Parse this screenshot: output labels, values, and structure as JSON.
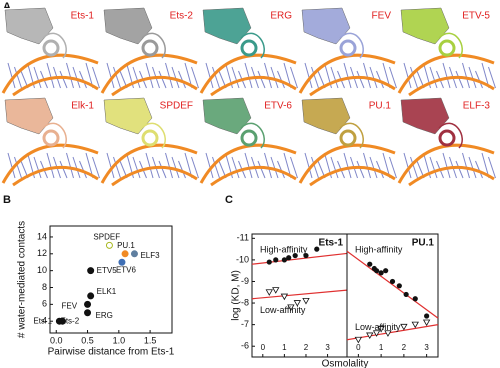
{
  "panel_labels": [
    "A",
    "B",
    "C"
  ],
  "structures": [
    {
      "label": "Ets-1",
      "color": "#b0b0b0"
    },
    {
      "label": "Ets-2",
      "color": "#9a9a9a"
    },
    {
      "label": "ERG",
      "color": "#3a9a8a"
    },
    {
      "label": "FEV",
      "color": "#9aa3d8"
    },
    {
      "label": "ETV-5",
      "color": "#a8d040"
    },
    {
      "label": "Elk-1",
      "color": "#e8b090"
    },
    {
      "label": "SPDEF",
      "color": "#dede70"
    },
    {
      "label": "ETV-6",
      "color": "#5aa070"
    },
    {
      "label": "PU.1",
      "color": "#c0a040"
    },
    {
      "label": "ELF-3",
      "color": "#a03040"
    }
  ],
  "chart_data": [
    {
      "type": "scatter",
      "xlabel": "Pairwise distance from Ets-1",
      "ylabel": "# water-mediated contacts",
      "categories": [
        "Ets-1",
        "Ets-2",
        "ERG",
        "FEV",
        "ELK1",
        "ETV5",
        "SPDEF",
        "PU.1",
        "ETV6",
        "ELF3"
      ],
      "x": [
        0.05,
        0.1,
        0.5,
        0.5,
        0.55,
        0.55,
        0.85,
        1.1,
        1.05,
        1.25
      ],
      "values": [
        4,
        4,
        5,
        6,
        7,
        10,
        13,
        12,
        11,
        12
      ],
      "colors": [
        "#111111",
        "#111111",
        "#111111",
        "#111111",
        "#111111",
        "#111111",
        "#ffffff",
        "#f08a24",
        "#3f6fb5",
        "#5f7fa0"
      ],
      "xlim": [
        -0.1,
        1.85
      ],
      "ylim": [
        2.6,
        15.3
      ],
      "xticks": [
        {
          "value": 0,
          "label": "0.0"
        },
        0.5,
        {
          "value": 1,
          "label": "1.0"
        },
        1.5
      ],
      "yticks": [
        4,
        6,
        8,
        10,
        12,
        14
      ]
    },
    {
      "type": "scatter",
      "title": "Ets-1",
      "ylabel": "log (KD, M)",
      "xlabel": "Osmolality",
      "xlim": [
        -0.5,
        3.9
      ],
      "ylim": [
        -11.2,
        -5.5
      ],
      "xticks": [
        0,
        1,
        2,
        3
      ],
      "yticks": [
        -11,
        -10,
        -9,
        -8,
        -7,
        -6
      ],
      "series": [
        {
          "name": "High-affinity",
          "color": "#111111",
          "x": [
            0.3,
            0.6,
            1.0,
            1.2,
            1.5,
            2.0,
            2.5
          ],
          "values": [
            -9.9,
            -10.0,
            -10.0,
            -10.1,
            -10.2,
            -10.2,
            -10.5
          ],
          "fit": {
            "x": [
              -0.5,
              3.9
            ],
            "values": [
              -9.8,
              -10.3
            ]
          }
        },
        {
          "name": "Low-affinity",
          "color": "#111111",
          "x": [
            0.3,
            0.6,
            1.0,
            1.3,
            1.6,
            2.0
          ],
          "values": [
            -8.5,
            -8.6,
            -8.3,
            -7.8,
            -8.0,
            -8.1
          ],
          "fit": {
            "x": [
              -0.5,
              3.9
            ],
            "values": [
              -8.2,
              -8.6
            ]
          }
        }
      ]
    },
    {
      "type": "scatter",
      "title": "PU.1",
      "xlim": [
        -0.5,
        3.5
      ],
      "ylim": [
        -11.2,
        -5.5
      ],
      "xticks": [
        0,
        1,
        2,
        3
      ],
      "series": [
        {
          "name": "High-affinity",
          "color": "#111111",
          "x": [
            0.5,
            0.7,
            0.8,
            1.0,
            1.2,
            1.5,
            1.8,
            2.1,
            2.5,
            3.0
          ],
          "values": [
            -9.8,
            -9.6,
            -9.5,
            -9.4,
            -9.5,
            -9.0,
            -8.8,
            -8.4,
            -8.2,
            -7.4
          ],
          "fit": {
            "x": [
              -0.5,
              3.5
            ],
            "values": [
              -10.4,
              -7.3
            ]
          }
        },
        {
          "name": "Low-affinity",
          "color": "#111111",
          "x": [
            0.0,
            0.5,
            0.8,
            1.0,
            1.3,
            2.0,
            2.5,
            3.0
          ],
          "values": [
            -6.3,
            -6.5,
            -6.6,
            -6.8,
            -6.6,
            -6.9,
            -7.0,
            -7.1
          ],
          "fit": {
            "x": [
              -0.5,
              3.5
            ],
            "values": [
              -6.3,
              -7.0
            ]
          }
        }
      ]
    }
  ]
}
